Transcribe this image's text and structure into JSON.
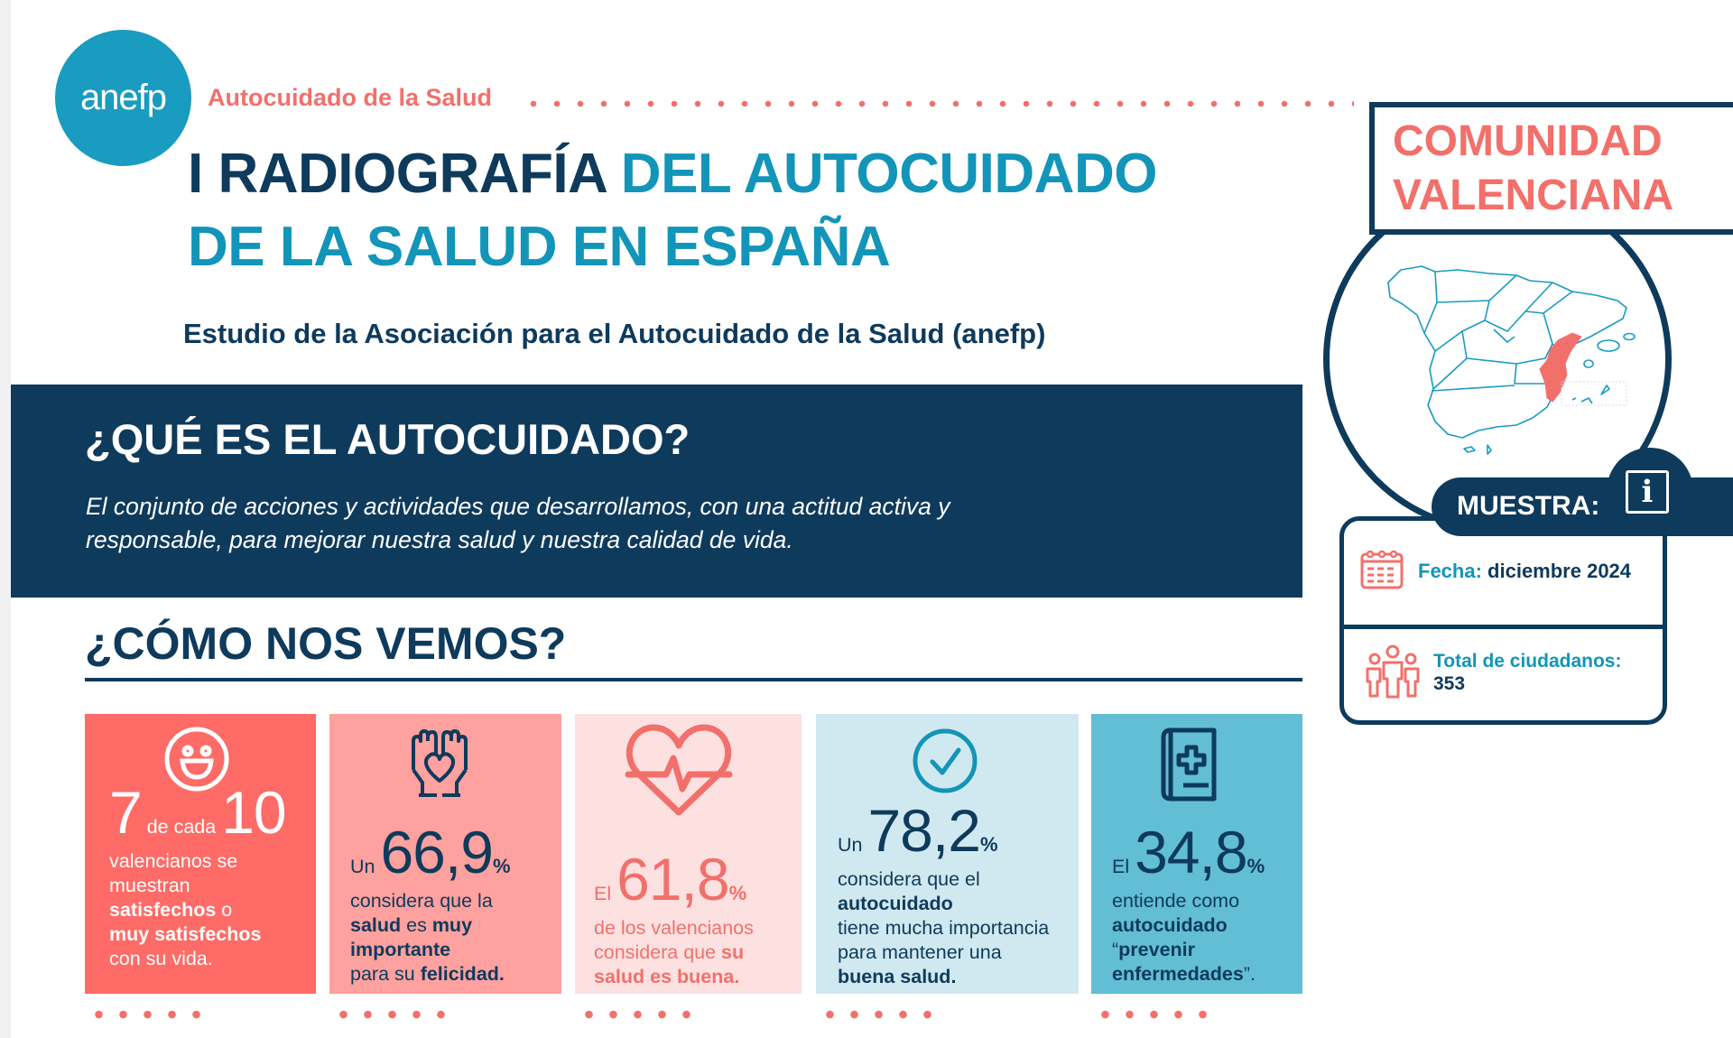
{
  "header": {
    "logo_text": "anefp",
    "tagline": "Autocuidado de la Salud",
    "title_part1": "I RADIOGRAFÍA ",
    "title_part2": "DEL AUTOCUIDADO",
    "title_line2": "DE LA SALUD EN ESPAÑA",
    "subtitle": "Estudio de la Asociación para el Autocuidado de la Salud (anefp)"
  },
  "definition": {
    "heading": "¿QUÉ ES EL AUTOCUIDADO?",
    "line1": "El conjunto de acciones y actividades que desarrollamos, con una actitud activa y",
    "line2": "responsable, para mejorar nuestra salud y nuestra calidad de vida."
  },
  "section_heading": "¿CÓMO NOS VEMOS?",
  "cards": [
    {
      "icon": "smiley-face-icon",
      "bg": "#ff6b66",
      "fg": "#ffffff",
      "num_color": "#ffffff",
      "pre": "7",
      "mid": " de cada ",
      "num": "10",
      "pct": "",
      "lines": [
        [
          [
            "valencianos se",
            false
          ]
        ],
        [
          [
            "muestran",
            false
          ]
        ],
        [
          [
            "satisfechos",
            true
          ],
          [
            " o",
            false
          ]
        ],
        [
          [
            "muy satisfechos",
            true
          ]
        ],
        [
          [
            "con su vida.",
            false
          ]
        ]
      ]
    },
    {
      "icon": "hands-heart-icon",
      "bg": "#ffa19e",
      "fg": "#0e3a5c",
      "num_color": "#0e3a5c",
      "pre": "Un ",
      "mid": "",
      "num": "66,9",
      "pct": "%",
      "lines": [
        [
          [
            "considera que la",
            false
          ]
        ],
        [
          [
            "salud",
            true
          ],
          [
            " es ",
            false
          ],
          [
            "muy",
            true
          ]
        ],
        [
          [
            "importante",
            true
          ]
        ],
        [
          [
            "para su ",
            false
          ],
          [
            "felicidad.",
            true
          ]
        ]
      ]
    },
    {
      "icon": "heartbeat-icon",
      "bg": "#fde1e0",
      "fg": "#f2706b",
      "num_color": "#f2706b",
      "pre": "El ",
      "mid": "",
      "num": "61,8",
      "pct": "%",
      "lines": [
        [
          [
            "de los valencianos",
            false
          ]
        ],
        [
          [
            "considera que ",
            false
          ],
          [
            "su",
            true
          ]
        ],
        [
          [
            "salud es buena.",
            true
          ]
        ]
      ]
    },
    {
      "icon": "check-circle-icon",
      "bg": "#d0e9f0",
      "fg": "#0e3a5c",
      "num_color": "#0e3a5c",
      "pre": "Un ",
      "mid": "",
      "num": "78,2",
      "pct": "%",
      "lines": [
        [
          [
            "considera que el",
            false
          ]
        ],
        [
          [
            "autocuidado",
            true
          ]
        ],
        [
          [
            "tiene mucha importancia",
            false
          ]
        ],
        [
          [
            "para mantener una",
            false
          ]
        ],
        [
          [
            "buena salud.",
            true
          ]
        ]
      ]
    },
    {
      "icon": "medical-book-icon",
      "bg": "#62bed4",
      "fg": "#0e3a5c",
      "num_color": "#0e3a5c",
      "pre": "El ",
      "mid": "",
      "num": "34,8",
      "pct": "%",
      "lines": [
        [
          [
            "entiende como",
            false
          ]
        ],
        [
          [
            "autocuidado",
            true
          ]
        ],
        [
          [
            "“",
            false
          ],
          [
            "prevenir",
            true
          ]
        ],
        [
          [
            "enfermedades",
            true
          ],
          [
            "”.",
            false
          ]
        ]
      ]
    }
  ],
  "region": {
    "line1": "COMUNIDAD",
    "line2": "VALENCIANA",
    "map_highlight": "Comunidad Valenciana"
  },
  "sample": {
    "heading": "MUESTRA:",
    "info_glyph": "i",
    "date_label": "Fecha:",
    "date_value": "diciembre 2024",
    "total_label": "Total de ciudadanos:",
    "total_value": "353"
  },
  "colors": {
    "navy": "#0e3a5c",
    "teal": "#1295b8",
    "coral": "#f2706b"
  }
}
